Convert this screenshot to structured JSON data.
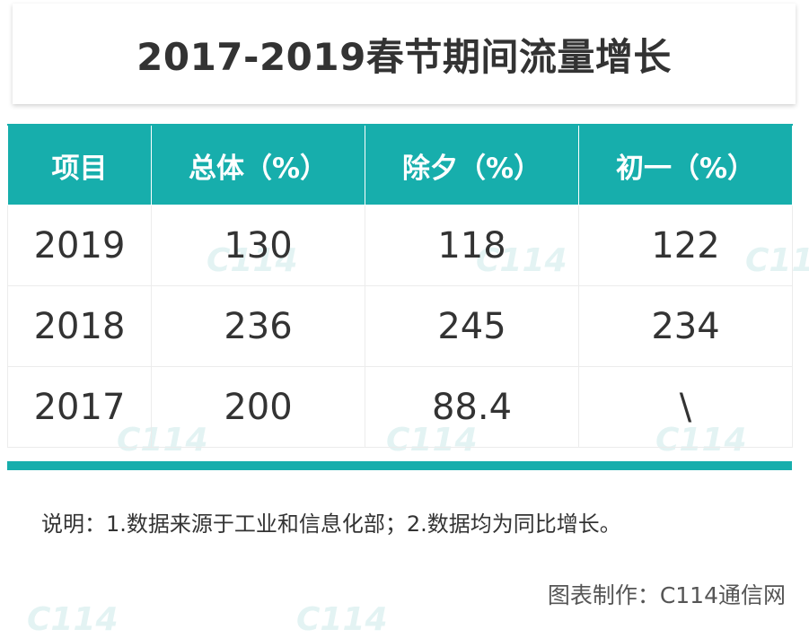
{
  "title": "2017-2019春节期间流量增长",
  "table": {
    "headers": [
      "项目",
      "总体（%）",
      "除夕（%）",
      "初一（%）"
    ],
    "rows": [
      [
        "2019",
        "130",
        "118",
        "122"
      ],
      [
        "2018",
        "236",
        "245",
        "234"
      ],
      [
        "2017",
        "200",
        "88.4",
        "\\"
      ]
    ]
  },
  "note": "说明：1.数据来源于工业和信息化部；2.数据均为同比增长。",
  "credit": "图表制作：C114通信网",
  "watermark": {
    "logo": "C114",
    "chars": [
      "通",
      "信",
      "网"
    ]
  },
  "colors": {
    "accent": "#17aeac",
    "text": "#333333"
  },
  "chart_data": {
    "type": "table",
    "title": "2017-2019春节期间流量增长",
    "columns": [
      "项目",
      "总体（%）",
      "除夕（%）",
      "初一（%）"
    ],
    "rows": [
      {
        "项目": "2019",
        "总体（%）": 130,
        "除夕（%）": 118,
        "初一（%）": 122
      },
      {
        "项目": "2018",
        "总体（%）": 236,
        "除夕（%）": 245,
        "初一（%）": 234
      },
      {
        "项目": "2017",
        "总体（%）": 200,
        "除夕（%）": 88.4,
        "初一（%）": "\\"
      }
    ]
  }
}
